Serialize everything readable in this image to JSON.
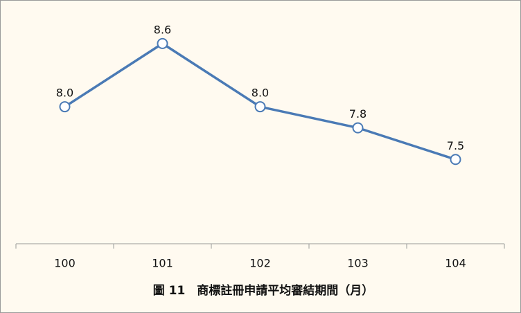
{
  "chart_data": {
    "type": "line",
    "title": "圖 11　商標註冊申請平均審結期間（月）",
    "categories": [
      "100",
      "101",
      "102",
      "103",
      "104"
    ],
    "values": [
      8.0,
      8.6,
      8.0,
      7.8,
      7.5
    ],
    "value_labels": [
      "8.0",
      "8.6",
      "8.0",
      "7.8",
      "7.5"
    ],
    "color": "#4a7ab5",
    "ylim": [
      6.7,
      9.0
    ]
  }
}
